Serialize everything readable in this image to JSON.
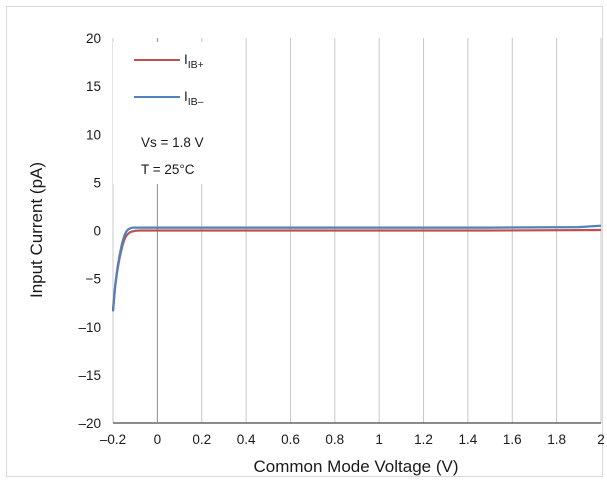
{
  "chart_data": {
    "type": "line",
    "title": "",
    "xlabel": "Common Mode Voltage (V)",
    "ylabel": "Input Current (pA)",
    "xlim": [
      -0.2,
      2
    ],
    "ylim": [
      -20,
      20
    ],
    "x_ticks": [
      -0.2,
      0,
      0.2,
      0.4,
      0.6,
      0.8,
      1,
      1.2,
      1.4,
      1.6,
      1.8,
      2
    ],
    "x_tick_labels": [
      "–0.2",
      "0",
      "0.2",
      "0.4",
      "0.6",
      "0.8",
      "1",
      "1.2",
      "1.4",
      "1.6",
      "1.8",
      "2"
    ],
    "y_ticks": [
      -20,
      -15,
      -10,
      -5,
      0,
      5,
      10,
      15,
      20
    ],
    "y_tick_labels": [
      "–20",
      "–15",
      "–10",
      "−5",
      "0",
      "5",
      "10",
      "15",
      "20"
    ],
    "grid": "vertical",
    "legend_position": "top-left",
    "series": [
      {
        "name_main": "I",
        "name_sub": "IB+",
        "color": "#c0504d",
        "x": [
          -0.2,
          -0.19,
          -0.18,
          -0.17,
          -0.16,
          -0.15,
          -0.14,
          -0.13,
          -0.12,
          -0.1,
          -0.08,
          0,
          0.5,
          1,
          1.5,
          2
        ],
        "y": [
          -8.2,
          -5.8,
          -4.1,
          -2.8,
          -1.8,
          -1.0,
          -0.55,
          -0.3,
          -0.15,
          -0.03,
          0.0,
          0.0,
          0.0,
          0.0,
          0.0,
          0.05
        ]
      },
      {
        "name_main": "I",
        "name_sub": "IB–",
        "color": "#4f81bd",
        "x": [
          -0.2,
          -0.19,
          -0.18,
          -0.17,
          -0.16,
          -0.15,
          -0.14,
          -0.13,
          -0.12,
          -0.11,
          -0.1,
          -0.08,
          0,
          0.5,
          1,
          1.5,
          1.9,
          2
        ],
        "y": [
          -8.4,
          -5.7,
          -3.9,
          -2.5,
          -1.4,
          -0.6,
          -0.1,
          0.15,
          0.25,
          0.3,
          0.3,
          0.3,
          0.3,
          0.3,
          0.3,
          0.3,
          0.35,
          0.5
        ]
      }
    ],
    "annotations": [
      "Vs = 1.8 V",
      "T = 25°C"
    ]
  }
}
